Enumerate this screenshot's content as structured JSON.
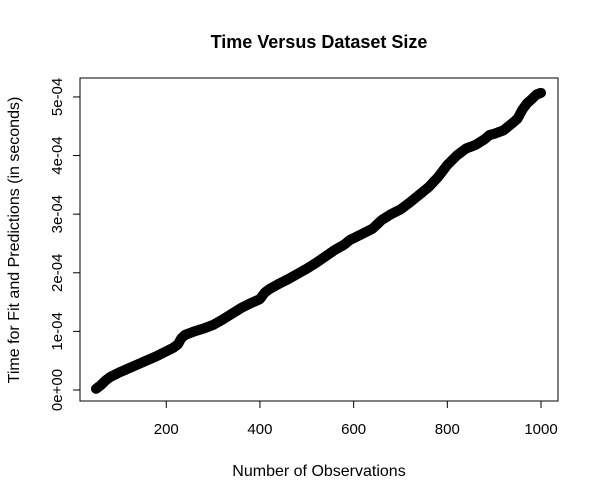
{
  "chart_data": {
    "type": "scatter",
    "title": "Time Versus Dataset Size",
    "xlabel": "Number of Observations",
    "ylabel": "Time for Fit and Predictions (in seconds)",
    "xlim": [
      50,
      1000
    ],
    "ylim": [
      0,
      0.000505
    ],
    "x_ticks": [
      200,
      400,
      600,
      800,
      1000
    ],
    "y_ticks": [
      0,
      0.0001,
      0.0002,
      0.0003,
      0.0004,
      0.0005
    ],
    "x_tick_labels": [
      "200",
      "400",
      "600",
      "800",
      "1000"
    ],
    "y_tick_labels": [
      "0e+00",
      "1e-04",
      "2e-04",
      "3e-04",
      "4e-04",
      "5e-04"
    ],
    "grid": false,
    "point_color": "#000000",
    "series_curve": {
      "x": [
        50,
        60,
        70,
        80,
        100,
        120,
        140,
        160,
        180,
        200,
        215,
        225,
        232,
        240,
        260,
        280,
        300,
        320,
        340,
        360,
        380,
        400,
        410,
        420,
        440,
        460,
        480,
        500,
        520,
        540,
        560,
        580,
        592,
        600,
        620,
        640,
        660,
        680,
        700,
        720,
        740,
        760,
        780,
        800,
        820,
        840,
        860,
        880,
        890,
        900,
        920,
        940,
        950,
        960,
        970,
        980,
        990,
        1000
      ],
      "y": [
        2e-06,
        8e-06,
        1.6e-05,
        2.2e-05,
        3e-05,
        3.7e-05,
        4.4e-05,
        5.1e-05,
        5.8e-05,
        6.6e-05,
        7.2e-05,
        7.8e-05,
        8.8e-05,
        9.4e-05,
        0.0001,
        0.000105,
        0.000111,
        0.00012,
        0.00013,
        0.00014,
        0.000148,
        0.000155,
        0.000166,
        0.000172,
        0.000181,
        0.000189,
        0.000198,
        0.000207,
        0.000217,
        0.000228,
        0.000239,
        0.000248,
        0.000256,
        0.000259,
        0.000267,
        0.000275,
        0.00029,
        0.0003,
        0.000308,
        0.00032,
        0.000333,
        0.000346,
        0.000363,
        0.000384,
        0.0004,
        0.000412,
        0.000418,
        0.000428,
        0.000435,
        0.000437,
        0.000443,
        0.000456,
        0.000463,
        0.000478,
        0.000489,
        0.000496,
        0.000504,
        0.000507
      ],
      "point_count": 951,
      "marker": "circle"
    }
  }
}
